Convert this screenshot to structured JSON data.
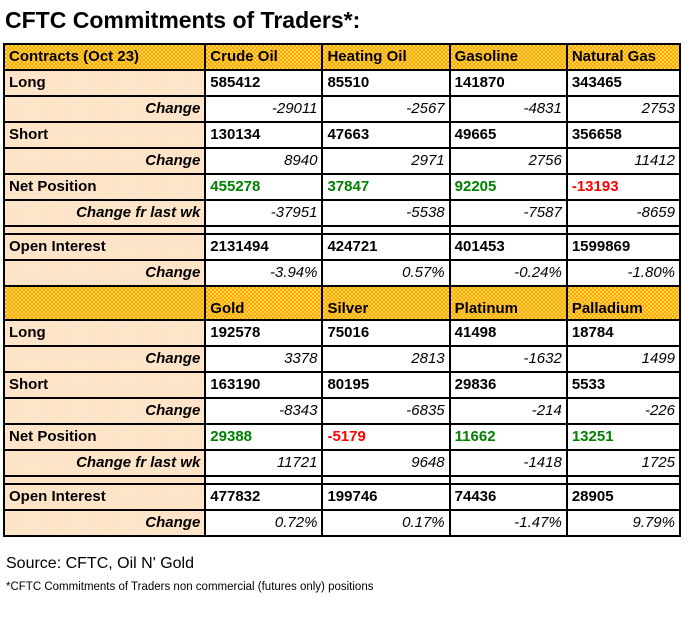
{
  "title": "CFTC Commitments of Traders*:",
  "footer": {
    "source": "Source: CFTC, Oil N' Gold",
    "note": "*CFTC Commitments of Traders non commercial (futures only) positions"
  },
  "colors": {
    "header_orange": "#ffa800",
    "header_orange_light": "#ffd24d",
    "label_peach": "#ffd9b3",
    "label_peach_light": "#ffeedd",
    "positive_green": "#008000",
    "negative_red": "#ff0000"
  },
  "chart_data": [
    {
      "type": "table",
      "title": "CFTC Commitments of Traders*:",
      "tall_header": false,
      "columns": [
        "Contracts (Oct 23)",
        "Crude Oil",
        "Heating Oil",
        "Gasoline",
        "Natural Gas"
      ],
      "rows": [
        {
          "label": "Long",
          "style": "main",
          "values": [
            "585412",
            "85510",
            "141870",
            "343465"
          ]
        },
        {
          "label": "Change",
          "style": "change",
          "values": [
            "-29011",
            "-2567",
            "-4831",
            "2753"
          ]
        },
        {
          "label": "Short",
          "style": "main",
          "values": [
            "130134",
            "47663",
            "49665",
            "356658"
          ]
        },
        {
          "label": "Change",
          "style": "change",
          "values": [
            "8940",
            "2971",
            "2756",
            "11412"
          ]
        },
        {
          "label": "Net Position",
          "style": "net",
          "values": [
            "455278",
            "37847",
            "92205",
            "-13193"
          ]
        },
        {
          "label": "Change fr last wk",
          "style": "change",
          "values": [
            "-37951",
            "-5538",
            "-7587",
            "-8659"
          ]
        },
        {
          "label": "",
          "style": "spacer",
          "values": [
            "",
            "",
            "",
            ""
          ]
        },
        {
          "label": "Open Interest",
          "style": "main",
          "values": [
            "2131494",
            "424721",
            "401453",
            "1599869"
          ]
        },
        {
          "label": "Change",
          "style": "change",
          "values": [
            "-3.94%",
            "0.57%",
            "-0.24%",
            "-1.80%"
          ]
        }
      ]
    },
    {
      "type": "table",
      "title": "",
      "tall_header": true,
      "columns": [
        "",
        "Gold",
        "Silver",
        "Platinum",
        "Palladium"
      ],
      "rows": [
        {
          "label": "Long",
          "style": "main",
          "values": [
            "192578",
            "75016",
            "41498",
            "18784"
          ]
        },
        {
          "label": "Change",
          "style": "change",
          "values": [
            "3378",
            "2813",
            "-1632",
            "1499"
          ]
        },
        {
          "label": "Short",
          "style": "main",
          "values": [
            "163190",
            "80195",
            "29836",
            "5533"
          ]
        },
        {
          "label": "Change",
          "style": "change",
          "values": [
            "-8343",
            "-6835",
            "-214",
            "-226"
          ]
        },
        {
          "label": "Net Position",
          "style": "net",
          "values": [
            "29388",
            "-5179",
            "11662",
            "13251"
          ]
        },
        {
          "label": "Change fr last wk",
          "style": "change",
          "values": [
            "11721",
            "9648",
            "-1418",
            "1725"
          ]
        },
        {
          "label": "",
          "style": "spacer",
          "values": [
            "",
            "",
            "",
            ""
          ]
        },
        {
          "label": "Open Interest",
          "style": "main",
          "values": [
            "477832",
            "199746",
            "74436",
            "28905"
          ]
        },
        {
          "label": "Change",
          "style": "change",
          "values": [
            "0.72%",
            "0.17%",
            "-1.47%",
            "9.79%"
          ]
        }
      ]
    }
  ]
}
